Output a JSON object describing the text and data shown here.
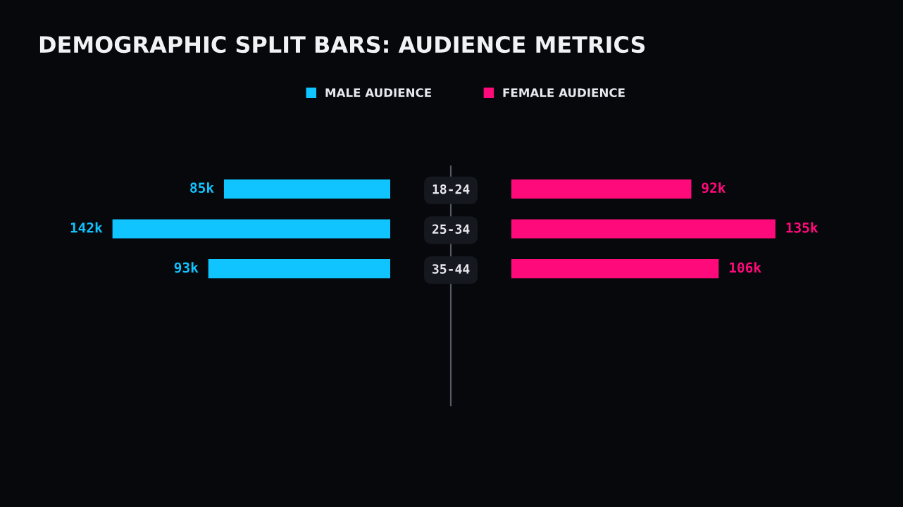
{
  "chart_data": [
    {
      "type": "bar",
      "orientation": "horizontal",
      "title": "DEMOGRAPHIC SPLIT BARS: AUDIENCE METRICS",
      "categories": [
        "18-24",
        "25-34",
        "35-44"
      ],
      "tick_labels": "y",
      "legend": "top",
      "series": [
        {
          "name": "MALE AUDIENCE",
          "color": "#10c4ff",
          "values": [
            85,
            142,
            93
          ],
          "value_labels": [
            "85k",
            "142k",
            "93k"
          ]
        }
      ]
    },
    {
      "type": "bar",
      "orientation": "horizontal",
      "categories": [
        null,
        null,
        null
      ],
      "tick_labels": false,
      "legend": "top",
      "series": [
        {
          "name": "FEMALE AUDIENCE",
          "color": "#ff0a7a",
          "values": [
            92,
            135,
            106
          ],
          "value_labels": [
            "92k",
            "135k",
            "106k"
          ]
        }
      ]
    }
  ]
}
